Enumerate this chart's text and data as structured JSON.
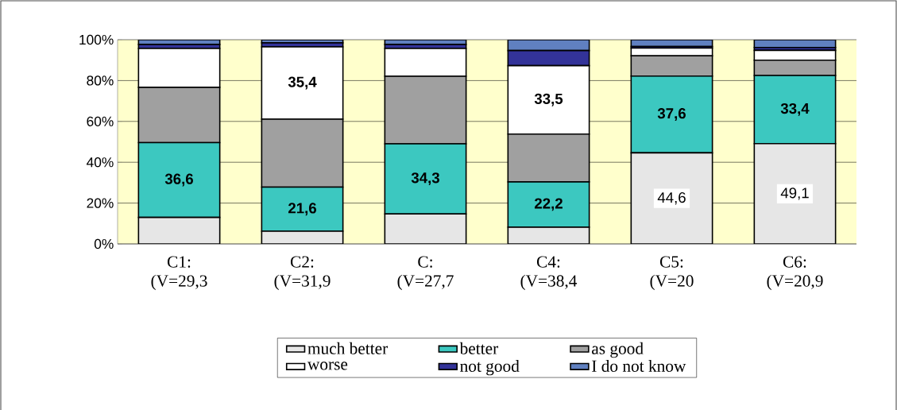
{
  "chart_data": {
    "type": "bar",
    "stacked": true,
    "categories": [
      "C1: (V=29,3",
      "C2: (V=31,9",
      "C: (V=27,7",
      "C4: (V=38,4",
      "C5: (V=20",
      "C6: (V=20,9"
    ],
    "series": [
      {
        "name": "much better",
        "color": "#e6e6e6",
        "values": [
          13.0,
          6.2,
          14.7,
          8.2,
          44.6,
          49.1
        ],
        "value_labels": [
          null,
          null,
          null,
          null,
          "44,6",
          "49,1"
        ]
      },
      {
        "name": "better",
        "color": "#3cc8c0",
        "values": [
          36.6,
          21.6,
          34.3,
          22.2,
          37.6,
          33.4
        ],
        "value_labels": [
          "36,6",
          "21,6",
          "34,3",
          "22,2",
          "37,6",
          "33,4"
        ]
      },
      {
        "name": "as good",
        "color": "#a0a0a0",
        "values": [
          27.1,
          33.3,
          33.1,
          23.4,
          9.9,
          7.5
        ],
        "value_labels": [
          null,
          null,
          null,
          null,
          null,
          null
        ]
      },
      {
        "name": "worse",
        "color": "#ffffff",
        "values": [
          19.0,
          35.4,
          13.6,
          33.5,
          3.8,
          4.8
        ],
        "value_labels": [
          null,
          "35,4",
          null,
          "33,5",
          null,
          null
        ]
      },
      {
        "name": "not good",
        "color": "#333399",
        "values": [
          2.0,
          2.0,
          2.0,
          7.4,
          0.8,
          1.4
        ],
        "value_labels": [
          null,
          null,
          null,
          null,
          null,
          null
        ]
      },
      {
        "name": "I do not know",
        "color": "#6080c0",
        "values": [
          2.3,
          1.5,
          2.3,
          5.3,
          3.3,
          3.8
        ],
        "value_labels": [
          null,
          null,
          null,
          null,
          null,
          null
        ]
      }
    ],
    "ylim": [
      0,
      100
    ],
    "yticks": [
      {
        "value": 0,
        "label": "0%"
      },
      {
        "value": 20,
        "label": "20%"
      },
      {
        "value": 40,
        "label": "40%"
      },
      {
        "value": 60,
        "label": "60%"
      },
      {
        "value": 80,
        "label": "80%"
      },
      {
        "value": 100,
        "label": "100%"
      }
    ],
    "grid": "y",
    "legend": "bottom"
  }
}
